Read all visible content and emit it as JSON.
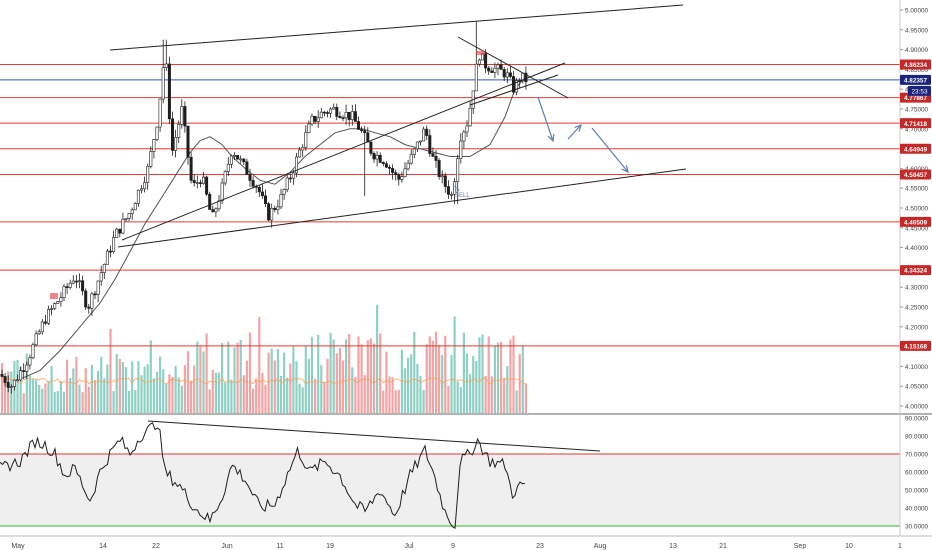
{
  "colors": {
    "background": "#ffffff",
    "candle": "#1e1e1e",
    "level_line": "#e53935",
    "level_badge": "#c62828",
    "price_line": "#3f51b5",
    "price_badge": "#1a237e",
    "sma": "#555555",
    "trendline": "#222222",
    "projection": "#5b7fb3",
    "volume_up": "#8fd0c4",
    "volume_down": "#f3a3a3",
    "volume_ma": "#f6a660",
    "rsi": "#1e1e1e",
    "rsi_band": "#efefef",
    "rsi_upper": "#e53935",
    "rsi_lower": "#2fb82f",
    "axis_text": "#444444"
  },
  "chart_data": [
    {
      "type": "candlestick",
      "ylim": [
        3.98,
        5.02
      ],
      "y_ticks": [
        "5.00000",
        "4.95000",
        "4.90000",
        "4.85000",
        "4.80000",
        "4.75000",
        "4.70000",
        "4.65000",
        "4.60000",
        "4.55000",
        "4.50000",
        "4.45000",
        "4.40000",
        "4.35000",
        "4.30000",
        "4.25000",
        "4.20000",
        "4.15000",
        "4.10000",
        "4.05000",
        "4.00000"
      ],
      "x_ticks": [
        "May",
        "14",
        "22",
        "Jun",
        "11",
        "19",
        "Jul",
        "9",
        "23",
        "Aug",
        "13",
        "21",
        "Sep",
        "10",
        "1"
      ],
      "price_levels": [
        {
          "value": 4.86234,
          "label": "4.86234"
        },
        {
          "value": 4.77867,
          "label": "4.77867"
        },
        {
          "value": 4.71418,
          "label": "4.71418"
        },
        {
          "value": 4.64949,
          "label": "4.64949"
        },
        {
          "value": 4.58457,
          "label": "4.58457"
        },
        {
          "value": 4.46509,
          "label": "4.46509"
        },
        {
          "value": 4.34324,
          "label": "4.34324"
        },
        {
          "value": 4.15168,
          "label": "4.15168"
        }
      ],
      "last_price": {
        "value": 4.82357,
        "label": "4.82357",
        "countdown": "23:53"
      },
      "annotations": [
        "SELL"
      ]
    },
    {
      "type": "line",
      "name": "RSI",
      "ylim": [
        28,
        92
      ],
      "y_ticks": [
        "90.0000",
        "80.0000",
        "70.0000",
        "60.0000",
        "50.0000",
        "40.0000",
        "30.0000"
      ],
      "bands": [
        30,
        70
      ]
    }
  ]
}
